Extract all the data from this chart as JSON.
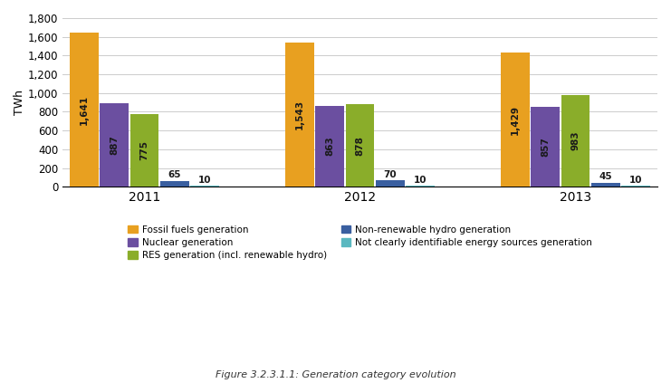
{
  "years": [
    "2011",
    "2012",
    "2013"
  ],
  "series": [
    {
      "name": "Fossil fuels generation",
      "color": "#E8A020",
      "values": [
        1641,
        1543,
        1429
      ]
    },
    {
      "name": "Nuclear generation",
      "color": "#6B4FA0",
      "values": [
        887,
        863,
        857
      ]
    },
    {
      "name": "RES generation (incl. renewable hydro)",
      "color": "#8AAD2A",
      "values": [
        775,
        878,
        983
      ]
    },
    {
      "name": "Non-renewable hydro generation",
      "color": "#3A5FA0",
      "values": [
        65,
        70,
        45
      ]
    },
    {
      "name": "Not clearly identifiable energy sources generation",
      "color": "#5AB8C0",
      "values": [
        10,
        10,
        10
      ]
    }
  ],
  "ylabel": "TWh",
  "ylim": [
    0,
    1800
  ],
  "yticks": [
    0,
    200,
    400,
    600,
    800,
    1000,
    1200,
    1400,
    1600,
    1800
  ],
  "ytick_labels": [
    "0",
    "200",
    "400",
    "600",
    "800",
    "1,000",
    "1,200",
    "1,400",
    "1,600",
    "1,800"
  ],
  "caption": "Figure 3.2.3.1.1: Generation category evolution",
  "background_color": "#FFFFFF",
  "bar_width": 0.14,
  "group_width": 1.0
}
